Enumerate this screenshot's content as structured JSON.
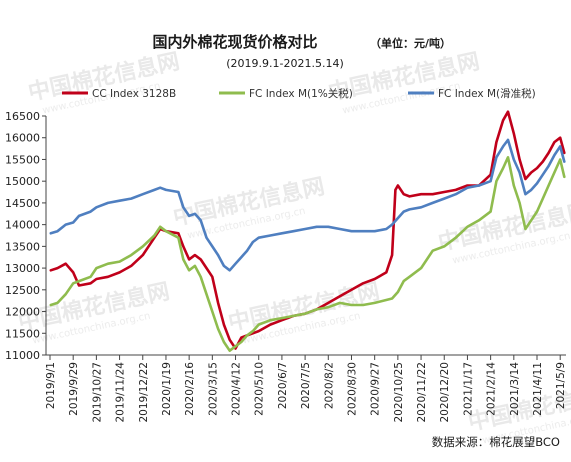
{
  "title": "国内外棉花现货价格对比",
  "unit": "（单位：元/吨）",
  "subtitle": "(2019.9.1-2021.5.14)",
  "source": "数据来源：棉花展望BCO",
  "watermark": {
    "text": "中国棉花信息网",
    "url": "www.cottonchina.org.cn"
  },
  "colors": {
    "cc": "#c0001a",
    "fc1": "#8fbc4e",
    "fc2": "#4f7fc0",
    "axis": "#444444"
  },
  "chart_data": {
    "type": "line",
    "title": "国内外棉花现货价格对比",
    "subtitle": "(2019.9.1-2021.5.14)",
    "unit": "元/吨",
    "xlabel": "",
    "ylabel": "",
    "ylim": [
      11000,
      16500
    ],
    "yticks": [
      11000,
      11500,
      12000,
      12500,
      13000,
      13500,
      14000,
      14500,
      15000,
      15500,
      16000,
      16500
    ],
    "xticks": [
      "2019/9/1",
      "2019/9/29",
      "2019/10/27",
      "2019/11/24",
      "2019/12/22",
      "2020/1/19",
      "2020/2/16",
      "2020/3/15",
      "2020/4/12",
      "2020/5/10",
      "2020/6/7",
      "2020/7/5",
      "2020/8/2",
      "2020/8/30",
      "2020/9/27",
      "2020/10/25",
      "2020/11/22",
      "2020/12/20",
      "2021/1/17",
      "2021/2/14",
      "2021/3/14",
      "2021/4/11",
      "2021/5/9"
    ],
    "legend_position": "top",
    "grid": false,
    "series": [
      {
        "name": "CC Index 3128B",
        "color": "#c0001a",
        "points": [
          [
            "2019/9/2",
            12950
          ],
          [
            "2019/9/10",
            13000
          ],
          [
            "2019/9/20",
            13100
          ],
          [
            "2019/9/29",
            12900
          ],
          [
            "2019/10/6",
            12600
          ],
          [
            "2019/10/20",
            12650
          ],
          [
            "2019/10/27",
            12750
          ],
          [
            "2019/11/10",
            12800
          ],
          [
            "2019/11/24",
            12900
          ],
          [
            "2019/12/8",
            13050
          ],
          [
            "2019/12/22",
            13300
          ],
          [
            "2020/1/5",
            13700
          ],
          [
            "2020/1/12",
            13900
          ],
          [
            "2020/1/19",
            13850
          ],
          [
            "2020/2/3",
            13800
          ],
          [
            "2020/2/9",
            13500
          ],
          [
            "2020/2/16",
            13200
          ],
          [
            "2020/2/23",
            13300
          ],
          [
            "2020/3/1",
            13200
          ],
          [
            "2020/3/8",
            13000
          ],
          [
            "2020/3/15",
            12800
          ],
          [
            "2020/3/22",
            12200
          ],
          [
            "2020/3/29",
            11700
          ],
          [
            "2020/4/5",
            11350
          ],
          [
            "2020/4/12",
            11150
          ],
          [
            "2020/4/19",
            11400
          ],
          [
            "2020/4/26",
            11450
          ],
          [
            "2020/5/3",
            11500
          ],
          [
            "2020/5/10",
            11550
          ],
          [
            "2020/5/24",
            11700
          ],
          [
            "2020/6/7",
            11800
          ],
          [
            "2020/6/21",
            11900
          ],
          [
            "2020/7/5",
            11950
          ],
          [
            "2020/7/19",
            12050
          ],
          [
            "2020/8/2",
            12200
          ],
          [
            "2020/8/16",
            12350
          ],
          [
            "2020/8/30",
            12500
          ],
          [
            "2020/9/13",
            12650
          ],
          [
            "2020/9/27",
            12750
          ],
          [
            "2020/10/11",
            12900
          ],
          [
            "2020/10/18",
            13300
          ],
          [
            "2020/10/22",
            14800
          ],
          [
            "2020/10/25",
            14900
          ],
          [
            "2020/11/1",
            14700
          ],
          [
            "2020/11/8",
            14650
          ],
          [
            "2020/11/22",
            14700
          ],
          [
            "2020/12/6",
            14700
          ],
          [
            "2020/12/20",
            14750
          ],
          [
            "2021/1/3",
            14800
          ],
          [
            "2021/1/17",
            14900
          ],
          [
            "2021/1/31",
            14900
          ],
          [
            "2021/2/14",
            15150
          ],
          [
            "2021/2/21",
            15900
          ],
          [
            "2021/3/1",
            16400
          ],
          [
            "2021/3/7",
            16600
          ],
          [
            "2021/3/14",
            16100
          ],
          [
            "2021/3/21",
            15500
          ],
          [
            "2021/3/28",
            15050
          ],
          [
            "2021/4/4",
            15200
          ],
          [
            "2021/4/11",
            15300
          ],
          [
            "2021/4/18",
            15450
          ],
          [
            "2021/4/25",
            15650
          ],
          [
            "2021/5/2",
            15900
          ],
          [
            "2021/5/9",
            16000
          ],
          [
            "2021/5/14",
            15650
          ]
        ]
      },
      {
        "name": "FC Index M(1%关税)",
        "color": "#8fbc4e",
        "points": [
          [
            "2019/9/2",
            12150
          ],
          [
            "2019/9/10",
            12200
          ],
          [
            "2019/9/20",
            12400
          ],
          [
            "2019/9/29",
            12650
          ],
          [
            "2019/10/6",
            12700
          ],
          [
            "2019/10/20",
            12800
          ],
          [
            "2019/10/27",
            13000
          ],
          [
            "2019/11/10",
            13100
          ],
          [
            "2019/11/24",
            13150
          ],
          [
            "2019/12/8",
            13300
          ],
          [
            "2019/12/22",
            13500
          ],
          [
            "2020/1/5",
            13750
          ],
          [
            "2020/1/12",
            13950
          ],
          [
            "2020/1/19",
            13850
          ],
          [
            "2020/2/3",
            13700
          ],
          [
            "2020/2/9",
            13200
          ],
          [
            "2020/2/16",
            12950
          ],
          [
            "2020/2/23",
            13050
          ],
          [
            "2020/3/1",
            12800
          ],
          [
            "2020/3/8",
            12400
          ],
          [
            "2020/3/15",
            12000
          ],
          [
            "2020/3/22",
            11600
          ],
          [
            "2020/3/29",
            11300
          ],
          [
            "2020/4/5",
            11100
          ],
          [
            "2020/4/12",
            11200
          ],
          [
            "2020/4/19",
            11300
          ],
          [
            "2020/4/26",
            11450
          ],
          [
            "2020/5/3",
            11550
          ],
          [
            "2020/5/10",
            11700
          ],
          [
            "2020/5/24",
            11800
          ],
          [
            "2020/6/7",
            11850
          ],
          [
            "2020/6/21",
            11900
          ],
          [
            "2020/7/5",
            11950
          ],
          [
            "2020/7/19",
            12050
          ],
          [
            "2020/8/2",
            12100
          ],
          [
            "2020/8/16",
            12200
          ],
          [
            "2020/8/30",
            12150
          ],
          [
            "2020/9/13",
            12150
          ],
          [
            "2020/9/27",
            12200
          ],
          [
            "2020/10/18",
            12300
          ],
          [
            "2020/10/25",
            12450
          ],
          [
            "2020/11/1",
            12700
          ],
          [
            "2020/11/8",
            12800
          ],
          [
            "2020/11/22",
            13000
          ],
          [
            "2020/12/6",
            13400
          ],
          [
            "2020/12/20",
            13500
          ],
          [
            "2021/1/3",
            13700
          ],
          [
            "2021/1/17",
            13950
          ],
          [
            "2021/1/31",
            14100
          ],
          [
            "2021/2/14",
            14300
          ],
          [
            "2021/2/21",
            15000
          ],
          [
            "2021/3/1",
            15300
          ],
          [
            "2021/3/7",
            15550
          ],
          [
            "2021/3/14",
            14900
          ],
          [
            "2021/3/21",
            14500
          ],
          [
            "2021/3/28",
            13900
          ],
          [
            "2021/4/4",
            14100
          ],
          [
            "2021/4/11",
            14300
          ],
          [
            "2021/4/18",
            14600
          ],
          [
            "2021/4/25",
            14900
          ],
          [
            "2021/5/2",
            15200
          ],
          [
            "2021/5/9",
            15500
          ],
          [
            "2021/5/14",
            15100
          ]
        ]
      },
      {
        "name": "FC Index M(滑准税)",
        "color": "#4f7fc0",
        "points": [
          [
            "2019/9/2",
            13800
          ],
          [
            "2019/9/10",
            13850
          ],
          [
            "2019/9/20",
            14000
          ],
          [
            "2019/9/29",
            14050
          ],
          [
            "2019/10/6",
            14200
          ],
          [
            "2019/10/20",
            14300
          ],
          [
            "2019/10/27",
            14400
          ],
          [
            "2019/11/10",
            14500
          ],
          [
            "2019/11/24",
            14550
          ],
          [
            "2019/12/8",
            14600
          ],
          [
            "2019/12/22",
            14700
          ],
          [
            "2020/1/5",
            14800
          ],
          [
            "2020/1/12",
            14850
          ],
          [
            "2020/1/19",
            14800
          ],
          [
            "2020/2/3",
            14750
          ],
          [
            "2020/2/9",
            14400
          ],
          [
            "2020/2/16",
            14200
          ],
          [
            "2020/2/23",
            14250
          ],
          [
            "2020/3/1",
            14100
          ],
          [
            "2020/3/8",
            13700
          ],
          [
            "2020/3/15",
            13500
          ],
          [
            "2020/3/22",
            13300
          ],
          [
            "2020/3/29",
            13050
          ],
          [
            "2020/4/5",
            12950
          ],
          [
            "2020/4/12",
            13100
          ],
          [
            "2020/4/19",
            13250
          ],
          [
            "2020/4/26",
            13400
          ],
          [
            "2020/5/3",
            13600
          ],
          [
            "2020/5/10",
            13700
          ],
          [
            "2020/5/24",
            13750
          ],
          [
            "2020/6/7",
            13800
          ],
          [
            "2020/6/21",
            13850
          ],
          [
            "2020/7/5",
            13900
          ],
          [
            "2020/7/19",
            13950
          ],
          [
            "2020/8/2",
            13950
          ],
          [
            "2020/8/16",
            13900
          ],
          [
            "2020/8/30",
            13850
          ],
          [
            "2020/9/13",
            13850
          ],
          [
            "2020/9/27",
            13850
          ],
          [
            "2020/10/11",
            13900
          ],
          [
            "2020/10/18",
            14000
          ],
          [
            "2020/10/25",
            14150
          ],
          [
            "2020/11/1",
            14300
          ],
          [
            "2020/11/8",
            14350
          ],
          [
            "2020/11/22",
            14400
          ],
          [
            "2020/12/6",
            14500
          ],
          [
            "2020/12/20",
            14600
          ],
          [
            "2021/1/3",
            14700
          ],
          [
            "2021/1/17",
            14850
          ],
          [
            "2021/1/31",
            14900
          ],
          [
            "2021/2/14",
            15000
          ],
          [
            "2021/2/21",
            15550
          ],
          [
            "2021/3/1",
            15800
          ],
          [
            "2021/3/7",
            15950
          ],
          [
            "2021/3/14",
            15500
          ],
          [
            "2021/3/21",
            15200
          ],
          [
            "2021/3/28",
            14700
          ],
          [
            "2021/4/4",
            14800
          ],
          [
            "2021/4/11",
            14950
          ],
          [
            "2021/4/18",
            15150
          ],
          [
            "2021/4/25",
            15350
          ],
          [
            "2021/5/2",
            15600
          ],
          [
            "2021/5/9",
            15800
          ],
          [
            "2021/5/14",
            15450
          ]
        ]
      }
    ]
  }
}
